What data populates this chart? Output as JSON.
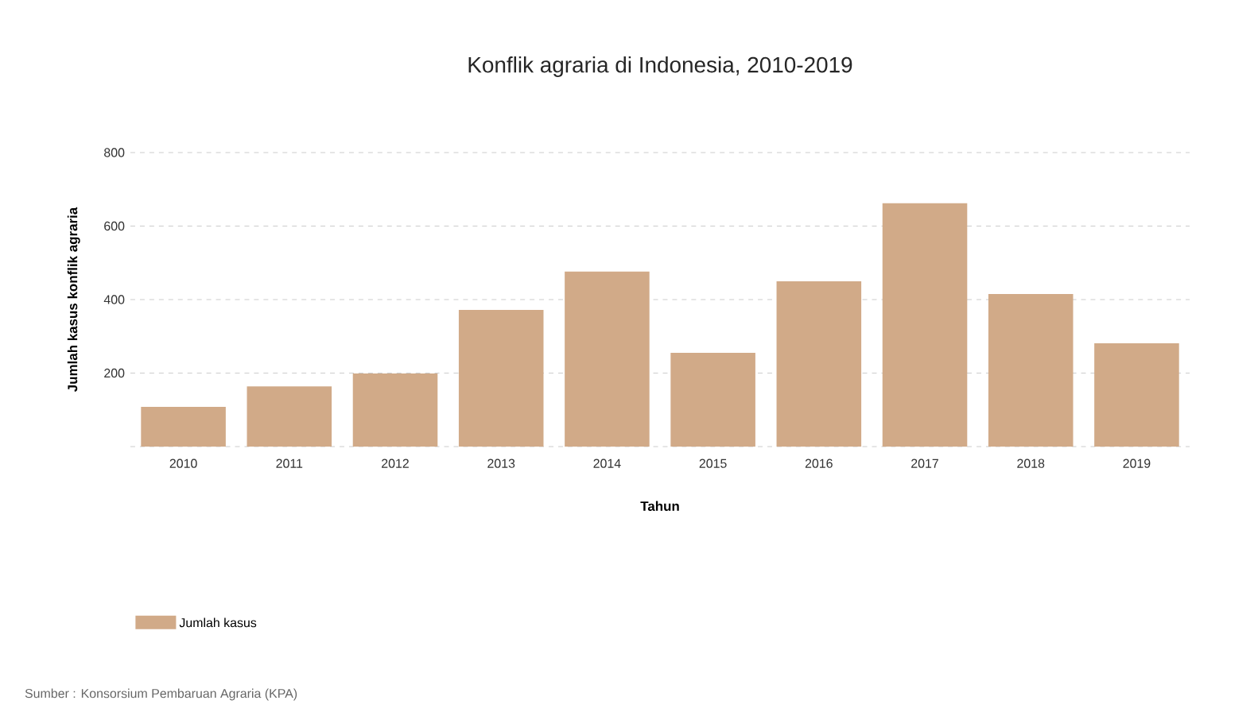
{
  "chart_data": {
    "type": "bar",
    "title": "Konflik agraria di Indonesia, 2010-2019",
    "xlabel": "Tahun",
    "ylabel": "Jumlah kasus konflik agraria",
    "categories": [
      "2010",
      "2011",
      "2012",
      "2013",
      "2014",
      "2015",
      "2016",
      "2017",
      "2018",
      "2019"
    ],
    "series": [
      {
        "name": "Jumlah kasus",
        "color": "#d1aa88",
        "values": [
          108,
          164,
          199,
          372,
          476,
          255,
          450,
          662,
          415,
          281
        ]
      }
    ],
    "ylim": [
      0,
      800
    ],
    "yticks": [
      {
        "value": 0,
        "label": null
      },
      200,
      400,
      600,
      800
    ],
    "grid": "y",
    "legend": "bottom left",
    "annotations": [
      "Sumber : Konsorsium Pembaruan Agraria (KPA)"
    ]
  }
}
